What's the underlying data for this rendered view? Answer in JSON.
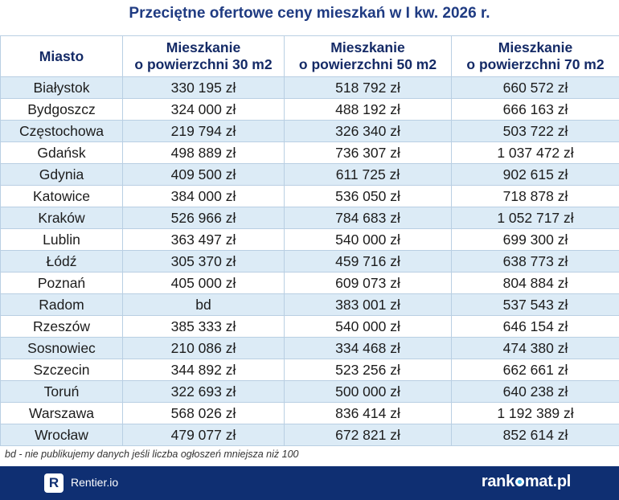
{
  "title": "Przeciętne ofertowe ceny mieszkań w I kw. 2026 r.",
  "table": {
    "headers": [
      [
        "Miasto"
      ],
      [
        "Mieszkanie",
        "o powierzchni 30 m2"
      ],
      [
        "Mieszkanie",
        "o powierzchni 50 m2"
      ],
      [
        "Mieszkanie",
        "o powierzchni 70 m2"
      ]
    ],
    "rows": [
      [
        "Białystok",
        "330 195 zł",
        "518 792 zł",
        "660 572 zł"
      ],
      [
        "Bydgoszcz",
        "324 000 zł",
        "488 192 zł",
        "666 163 zł"
      ],
      [
        "Częstochowa",
        "219 794 zł",
        "326 340 zł",
        "503 722 zł"
      ],
      [
        "Gdańsk",
        "498 889 zł",
        "736 307 zł",
        "1 037 472 zł"
      ],
      [
        "Gdynia",
        "409 500 zł",
        "611 725 zł",
        "902 615 zł"
      ],
      [
        "Katowice",
        "384 000 zł",
        "536 050 zł",
        "718 878 zł"
      ],
      [
        "Kraków",
        "526 966 zł",
        "784 683 zł",
        "1 052 717 zł"
      ],
      [
        "Lublin",
        "363 497 zł",
        "540 000 zł",
        "699 300 zł"
      ],
      [
        "Łódź",
        "305 370 zł",
        "459 716 zł",
        "638 773 zł"
      ],
      [
        "Poznań",
        "405 000 zł",
        "609 073 zł",
        "804 884 zł"
      ],
      [
        "Radom",
        "bd",
        "383 001 zł",
        "537 543 zł"
      ],
      [
        "Rzeszów",
        "385 333 zł",
        "540 000 zł",
        "646 154 zł"
      ],
      [
        "Sosnowiec",
        "210 086 zł",
        "334 468 zł",
        "474 380 zł"
      ],
      [
        "Szczecin",
        "344 892 zł",
        "523 256 zł",
        "662 661 zł"
      ],
      [
        "Toruń",
        "322 693 zł",
        "500 000 zł",
        "640 238 zł"
      ],
      [
        "Warszawa",
        "568 026 zł",
        "836 414 zł",
        "1 192 389 zł"
      ],
      [
        "Wrocław",
        "479 077 zł",
        "672 821 zł",
        "852 614 zł"
      ]
    ]
  },
  "footnote": "bd - nie publikujemy danych jeśli liczba ogłoszeń mniejsza niż 100",
  "footer": {
    "rentier_logo_letter": "R",
    "rentier_text": "Rentier.io",
    "rankomat_left": "rank",
    "rankomat_right": "mat.pl"
  },
  "colors": {
    "title": "#1f3b82",
    "row_stripe": "#dcebf6",
    "border": "#b9cfe3",
    "footer_bg": "#0f2f72",
    "rankomat_accent": "#2aa8e0"
  },
  "icons": {
    "rentier_logo": "rentier-logo-icon",
    "rankomat_o": "rankomat-o-icon"
  }
}
